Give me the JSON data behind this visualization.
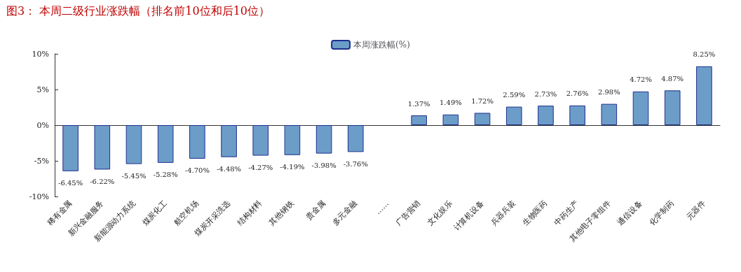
{
  "chart_data": {
    "type": "bar",
    "title": "图3： 本周二级行业涨跌幅（排名前10位和后10位）",
    "categories": [
      "稀有金属",
      "新兴金融服务",
      "新能源动力系统",
      "煤炭化工",
      "航空机场",
      "煤炭开采洗选",
      "结构材料",
      "其他钢铁",
      "贵金属",
      "多元金融",
      "……",
      "广告营销",
      "文化娱乐",
      "计算机设备",
      "兵器兵装",
      "生物医药",
      "中药生产",
      "其他电子零组件",
      "通信设备",
      "化学制药",
      "元器件"
    ],
    "series": [
      {
        "name": "本周涨跌幅(%)",
        "color": "#6b9dc8",
        "values": [
          -6.45,
          -6.22,
          -5.45,
          -5.28,
          -4.7,
          -4.48,
          -4.27,
          -4.19,
          -3.98,
          -3.76,
          null,
          1.37,
          1.49,
          1.72,
          2.59,
          2.73,
          2.76,
          2.98,
          4.72,
          4.87,
          8.25
        ],
        "value_labels": [
          "-6.45%",
          "-6.22%",
          "-5.45%",
          "-5.28%",
          "-4.70%",
          "-4.48%",
          "-4.27%",
          "-4.19%",
          "-3.98%",
          "-3.76%",
          null,
          "1.37%",
          "1.49%",
          "1.72%",
          "2.59%",
          "2.73%",
          "2.76%",
          "2.98%",
          "4.72%",
          "4.87%",
          "8.25%"
        ]
      }
    ],
    "ylim": [
      -10,
      10
    ],
    "yticks": [
      {
        "value": -10,
        "label": "-10%"
      },
      {
        "value": -5,
        "label": "-5%"
      },
      {
        "value": 0,
        "label": "0%"
      },
      {
        "value": 5,
        "label": "5%"
      },
      {
        "value": 10,
        "label": "10%"
      }
    ],
    "legend": "top"
  }
}
